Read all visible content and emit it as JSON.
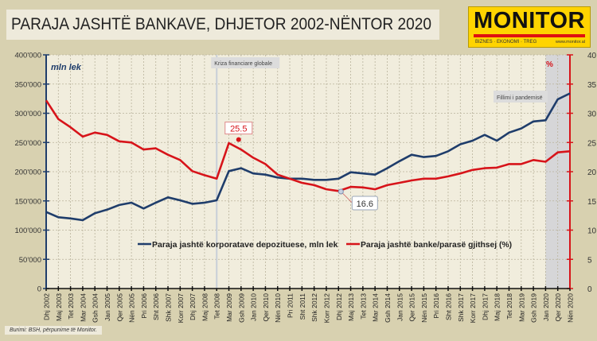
{
  "title": "PARAJA JASHTË BANKAVE, DHJETOR 2002-NËNTOR 2020",
  "logo": {
    "name": "MONITOR",
    "tagline": "BIZNES · EKONOMI · TREG",
    "url": "www.monitor.al"
  },
  "source": "Burimi: BSH, përpunime të Monitor.",
  "colors": {
    "background": "#d8d1b0",
    "plot_bg": "#f1eddd",
    "blue": "#1f3d6b",
    "red": "#d7141a",
    "pandemic_shade": "#d6d6d8"
  },
  "chart_data": {
    "type": "line",
    "title": "PARAJA JASHTË BANKAVE, DHJETOR 2002-NËNTOR 2020",
    "ylabel": "mln lek",
    "y2label": "%",
    "ylim": [
      0,
      400000
    ],
    "y2lim": [
      0,
      40
    ],
    "yticks": [
      "0",
      "50'000",
      "100'000",
      "150'000",
      "200'000",
      "250'000",
      "300'000",
      "350'000",
      "400'000"
    ],
    "y2ticks": [
      "0",
      "5",
      "10",
      "15",
      "20",
      "25",
      "30",
      "35",
      "40"
    ],
    "grid": true,
    "legend": "bottom-center",
    "xticks": [
      "Dhj 2002",
      "Maj 2003",
      "Tet 2003",
      "Mar 2004",
      "Gsh 2004",
      "Jan 2005",
      "Qer 2005",
      "Nën 2005",
      "Pri 2006",
      "Sht 2006",
      "Shk 2007",
      "Korr 2007",
      "Dhj 2007",
      "Maj 2008",
      "Tet 2008",
      "Mar 2009",
      "Gsh 2009",
      "Jan 2010",
      "Qer 2010",
      "Nën 2010",
      "Pri 2011",
      "Sht 2011",
      "Shk 2012",
      "Korr 2012",
      "Dhj 2012",
      "Maj 2013",
      "Tet 2013",
      "Mar 2014",
      "Gsh 2014",
      "Jan 2015",
      "Qer 2015",
      "Nën 2015",
      "Pri 2016",
      "Sht 2016",
      "Shk 2017",
      "Korr 2017",
      "Dhj 2017",
      "Maj 2018",
      "Tet 2018",
      "Mar 2019",
      "Gsh 2019",
      "Jan 2020",
      "Qer 2020",
      "Nën 2020"
    ],
    "x": [
      "2002-12",
      "2003-05",
      "2003-10",
      "2004-03",
      "2004-08",
      "2005-01",
      "2005-06",
      "2005-11",
      "2006-04",
      "2006-09",
      "2007-02",
      "2007-07",
      "2007-12",
      "2008-05",
      "2008-10",
      "2009-03",
      "2009-08",
      "2010-01",
      "2010-06",
      "2010-11",
      "2011-04",
      "2011-09",
      "2012-02",
      "2012-07",
      "2012-12",
      "2013-05",
      "2013-10",
      "2014-03",
      "2014-08",
      "2015-01",
      "2015-06",
      "2015-11",
      "2016-04",
      "2016-09",
      "2017-02",
      "2017-07",
      "2017-12",
      "2018-05",
      "2018-10",
      "2019-03",
      "2019-08",
      "2020-01",
      "2020-06",
      "2020-11"
    ],
    "series": [
      {
        "name": "Paraja jashtë korporatave depozituese, mln lek",
        "axis": "left",
        "color": "#1f3d6b",
        "values": [
          131000,
          122000,
          120000,
          117000,
          129000,
          135000,
          143000,
          147000,
          137000,
          147000,
          156000,
          151000,
          145000,
          147000,
          151000,
          201000,
          206000,
          197000,
          195000,
          190000,
          188000,
          188000,
          186000,
          186000,
          188000,
          199000,
          197000,
          195000,
          206000,
          218000,
          229000,
          225000,
          227000,
          235000,
          247000,
          253000,
          263000,
          253000,
          267000,
          274000,
          286000,
          288000,
          324000,
          334000
        ]
      },
      {
        "name": "Paraja jashtë banke/parasë gjithsej (%)",
        "axis": "right",
        "color": "#d7141a",
        "values": [
          32.2,
          29.0,
          27.6,
          26.0,
          26.7,
          26.3,
          25.2,
          25.0,
          23.8,
          24.0,
          22.9,
          22.0,
          20.1,
          19.4,
          18.8,
          24.9,
          23.8,
          22.4,
          21.3,
          19.5,
          18.8,
          18.1,
          17.7,
          17.0,
          16.7,
          17.4,
          17.3,
          17.0,
          17.7,
          18.1,
          18.5,
          18.8,
          18.8,
          19.2,
          19.7,
          20.3,
          20.6,
          20.7,
          21.3,
          21.3,
          22.0,
          21.7,
          23.3,
          23.5
        ]
      }
    ],
    "annotations": [
      {
        "text": "25.5",
        "series": 1,
        "x": "2009-07",
        "y": 25.5
      },
      {
        "text": "16.6",
        "series": 1,
        "x": "2013-01",
        "y": 16.6
      },
      {
        "text": "Kriza financiare globale",
        "x": "2008-10"
      },
      {
        "text": "Fillimi i pandemisë",
        "x_from": "2020-01",
        "x_to": "2020-11"
      }
    ]
  }
}
